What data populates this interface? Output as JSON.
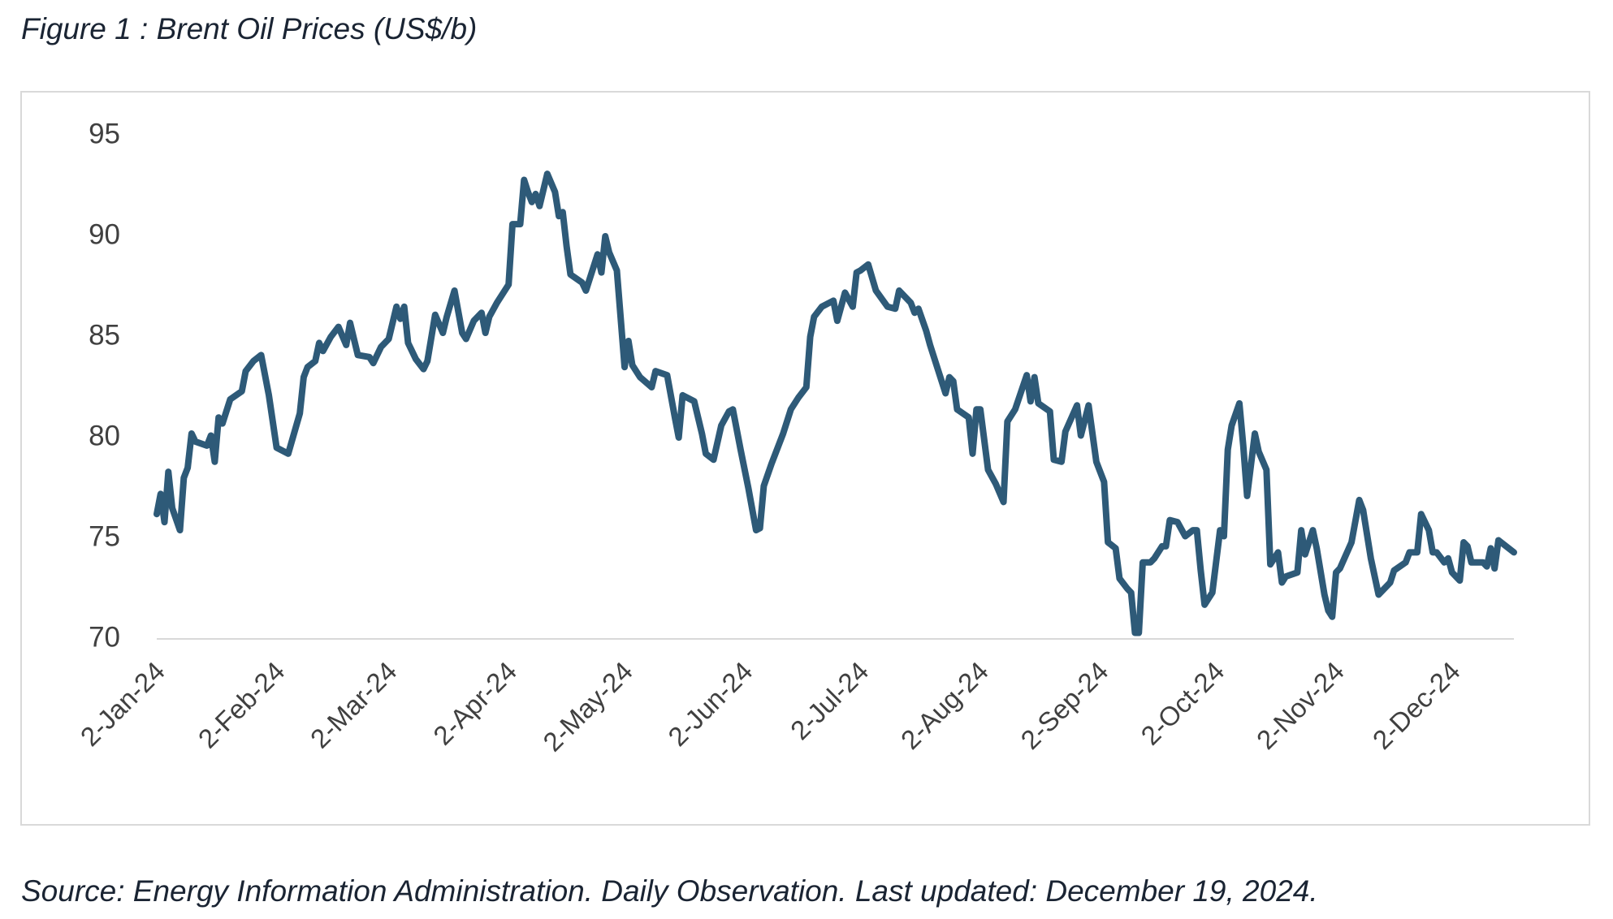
{
  "chart_data": {
    "type": "line",
    "title": "Figure 1 : Brent Oil Prices (US$/b)",
    "source": "Source: Energy Information Administration. Daily Observation. Last updated: December 19, 2024.",
    "color": "#2e5a78",
    "grid": false,
    "xlim": [
      "2024-01-02",
      "2024-12-18"
    ],
    "xticks": [
      {
        "value": "2024-01-02",
        "label": "2-Jan-24"
      },
      {
        "value": "2024-02-02",
        "label": "2-Feb-24"
      },
      {
        "value": "2024-03-02",
        "label": "2-Mar-24"
      },
      {
        "value": "2024-04-02",
        "label": "2-Apr-24"
      },
      {
        "value": "2024-05-02",
        "label": "2-May-24"
      },
      {
        "value": "2024-06-02",
        "label": "2-Jun-24"
      },
      {
        "value": "2024-07-02",
        "label": "2-Jul-24"
      },
      {
        "value": "2024-08-02",
        "label": "2-Aug-24"
      },
      {
        "value": "2024-09-02",
        "label": "2-Sep-24"
      },
      {
        "value": "2024-10-02",
        "label": "2-Oct-24"
      },
      {
        "value": "2024-11-02",
        "label": "2-Nov-24"
      },
      {
        "value": "2024-12-02",
        "label": "2-Dec-24"
      }
    ],
    "ylim": [
      70,
      95
    ],
    "yticks": [
      70,
      75,
      80,
      85,
      90,
      95
    ],
    "x": [
      "2024-01-02",
      "2024-01-03",
      "2024-01-04",
      "2024-01-05",
      "2024-01-06",
      "2024-01-08",
      "2024-01-09",
      "2024-01-10",
      "2024-01-11",
      "2024-01-12",
      "2024-01-15",
      "2024-01-16",
      "2024-01-17",
      "2024-01-18",
      "2024-01-19",
      "2024-01-21",
      "2024-01-24",
      "2024-01-25",
      "2024-01-27",
      "2024-01-29",
      "2024-01-31",
      "2024-02-02",
      "2024-02-05",
      "2024-02-08",
      "2024-02-09",
      "2024-02-10",
      "2024-02-12",
      "2024-02-13",
      "2024-02-14",
      "2024-02-16",
      "2024-02-18",
      "2024-02-20",
      "2024-02-21",
      "2024-02-23",
      "2024-02-26",
      "2024-02-27",
      "2024-02-29",
      "2024-03-02",
      "2024-03-04",
      "2024-03-05",
      "2024-03-06",
      "2024-03-07",
      "2024-03-09",
      "2024-03-11",
      "2024-03-12",
      "2024-03-14",
      "2024-03-16",
      "2024-03-17",
      "2024-03-19",
      "2024-03-21",
      "2024-03-22",
      "2024-03-24",
      "2024-03-26",
      "2024-03-27",
      "2024-03-28",
      "2024-03-30",
      "2024-04-02",
      "2024-04-03",
      "2024-04-05",
      "2024-04-06",
      "2024-04-07",
      "2024-04-08",
      "2024-04-09",
      "2024-04-10",
      "2024-04-12",
      "2024-04-14",
      "2024-04-15",
      "2024-04-16",
      "2024-04-17",
      "2024-04-18",
      "2024-04-21",
      "2024-04-22",
      "2024-04-25",
      "2024-04-26",
      "2024-04-27",
      "2024-04-28",
      "2024-04-30",
      "2024-05-02",
      "2024-05-03",
      "2024-05-04",
      "2024-05-06",
      "2024-05-09",
      "2024-05-10",
      "2024-05-13",
      "2024-05-15",
      "2024-05-16",
      "2024-05-17",
      "2024-05-20",
      "2024-05-22",
      "2024-05-23",
      "2024-05-25",
      "2024-05-27",
      "2024-05-29",
      "2024-05-30",
      "2024-06-01",
      "2024-06-03",
      "2024-06-05",
      "2024-06-06",
      "2024-06-07",
      "2024-06-09",
      "2024-06-12",
      "2024-06-14",
      "2024-06-16",
      "2024-06-18",
      "2024-06-19",
      "2024-06-20",
      "2024-06-22",
      "2024-06-25",
      "2024-06-26",
      "2024-06-28",
      "2024-06-30",
      "2024-07-01",
      "2024-07-02",
      "2024-07-04",
      "2024-07-06",
      "2024-07-09",
      "2024-07-11",
      "2024-07-12",
      "2024-07-15",
      "2024-07-16",
      "2024-07-17",
      "2024-07-19",
      "2024-07-20",
      "2024-07-23",
      "2024-07-24",
      "2024-07-25",
      "2024-07-26",
      "2024-07-27",
      "2024-07-30",
      "2024-07-31",
      "2024-08-01",
      "2024-08-02",
      "2024-08-04",
      "2024-08-06",
      "2024-08-08",
      "2024-08-09",
      "2024-08-11",
      "2024-08-14",
      "2024-08-15",
      "2024-08-16",
      "2024-08-17",
      "2024-08-20",
      "2024-08-21",
      "2024-08-23",
      "2024-08-24",
      "2024-08-27",
      "2024-08-28",
      "2024-08-30",
      "2024-08-31",
      "2024-09-01",
      "2024-09-03",
      "2024-09-04",
      "2024-09-06",
      "2024-09-07",
      "2024-09-09",
      "2024-09-10",
      "2024-09-11",
      "2024-09-12",
      "2024-09-13",
      "2024-09-15",
      "2024-09-16",
      "2024-09-18",
      "2024-09-19",
      "2024-09-20",
      "2024-09-22",
      "2024-09-24",
      "2024-09-26",
      "2024-09-27",
      "2024-09-28",
      "2024-09-29",
      "2024-09-30",
      "2024-10-01",
      "2024-10-03",
      "2024-10-04",
      "2024-10-05",
      "2024-10-06",
      "2024-10-08",
      "2024-10-09",
      "2024-10-10",
      "2024-10-12",
      "2024-10-13",
      "2024-10-15",
      "2024-10-16",
      "2024-10-18",
      "2024-10-19",
      "2024-10-20",
      "2024-10-23",
      "2024-10-24",
      "2024-10-25",
      "2024-10-27",
      "2024-10-28",
      "2024-10-30",
      "2024-10-31",
      "2024-11-01",
      "2024-11-02",
      "2024-11-03",
      "2024-11-06",
      "2024-11-08",
      "2024-11-09",
      "2024-11-11",
      "2024-11-13",
      "2024-11-16",
      "2024-11-17",
      "2024-11-20",
      "2024-11-21",
      "2024-11-23",
      "2024-11-24",
      "2024-11-26",
      "2024-11-27",
      "2024-11-28",
      "2024-11-30",
      "2024-12-01",
      "2024-12-02",
      "2024-12-04",
      "2024-12-05",
      "2024-12-06",
      "2024-12-07",
      "2024-12-10",
      "2024-12-11",
      "2024-12-12",
      "2024-12-13",
      "2024-12-14",
      "2024-12-18"
    ],
    "values": [
      76.2,
      77.2,
      75.8,
      78.3,
      76.5,
      75.4,
      78.0,
      78.5,
      80.2,
      79.8,
      79.6,
      80.1,
      78.8,
      81.0,
      80.7,
      81.9,
      82.3,
      83.3,
      83.8,
      84.1,
      82.1,
      79.5,
      79.2,
      81.2,
      83.0,
      83.5,
      83.8,
      84.7,
      84.3,
      85.0,
      85.5,
      84.6,
      85.7,
      84.1,
      84.0,
      83.7,
      84.5,
      84.9,
      86.5,
      85.9,
      86.5,
      84.7,
      83.9,
      83.4,
      83.8,
      86.1,
      85.2,
      86.0,
      87.3,
      85.2,
      84.9,
      85.8,
      86.2,
      85.2,
      86.0,
      86.7,
      87.6,
      90.6,
      90.6,
      92.8,
      92.2,
      91.7,
      92.1,
      91.5,
      93.1,
      92.2,
      91.0,
      91.2,
      89.5,
      88.1,
      87.7,
      87.3,
      89.1,
      88.2,
      90.0,
      89.2,
      88.3,
      83.5,
      84.8,
      83.6,
      83.0,
      82.5,
      83.3,
      83.1,
      81.0,
      80.0,
      82.1,
      81.8,
      80.2,
      79.2,
      78.9,
      80.6,
      81.3,
      81.4,
      79.4,
      77.5,
      75.4,
      75.5,
      77.6,
      78.7,
      80.2,
      81.4,
      82.0,
      82.5,
      85.0,
      86.0,
      86.5,
      86.8,
      85.8,
      87.2,
      86.5,
      88.2,
      88.3,
      88.6,
      87.3,
      86.5,
      86.4,
      87.3,
      86.7,
      86.2,
      86.4,
      85.3,
      84.6,
      82.8,
      82.2,
      83.0,
      82.8,
      81.4,
      81.0,
      79.2,
      81.4,
      81.4,
      78.4,
      77.7,
      76.8,
      80.8,
      81.4,
      83.1,
      81.8,
      83.0,
      81.7,
      81.3,
      78.9,
      78.8,
      80.3,
      81.6,
      80.1,
      81.6,
      80.2,
      78.8,
      77.8,
      74.8,
      74.5,
      73.0,
      72.5,
      72.3,
      70.3,
      70.3,
      73.8,
      73.8,
      74.0,
      74.6,
      74.6,
      75.9,
      75.8,
      75.1,
      75.4,
      75.4,
      73.4,
      71.7,
      72.0,
      72.3,
      75.4,
      75.1,
      79.4,
      80.6,
      81.7,
      79.6,
      77.1,
      80.2,
      79.3,
      78.4,
      73.7,
      74.3,
      72.8,
      73.1,
      73.3,
      75.4,
      74.2,
      75.4,
      74.5,
      72.2,
      71.4,
      71.1,
      73.3,
      73.5,
      74.8,
      76.9,
      76.4,
      74.0,
      72.2,
      72.8,
      73.4,
      73.8,
      74.3,
      74.3,
      76.2,
      75.4,
      74.3,
      74.3,
      73.8,
      74.0,
      73.3,
      72.9,
      74.8,
      74.6,
      73.8,
      73.8,
      73.6,
      74.5,
      73.5,
      74.9,
      74.3
    ]
  }
}
